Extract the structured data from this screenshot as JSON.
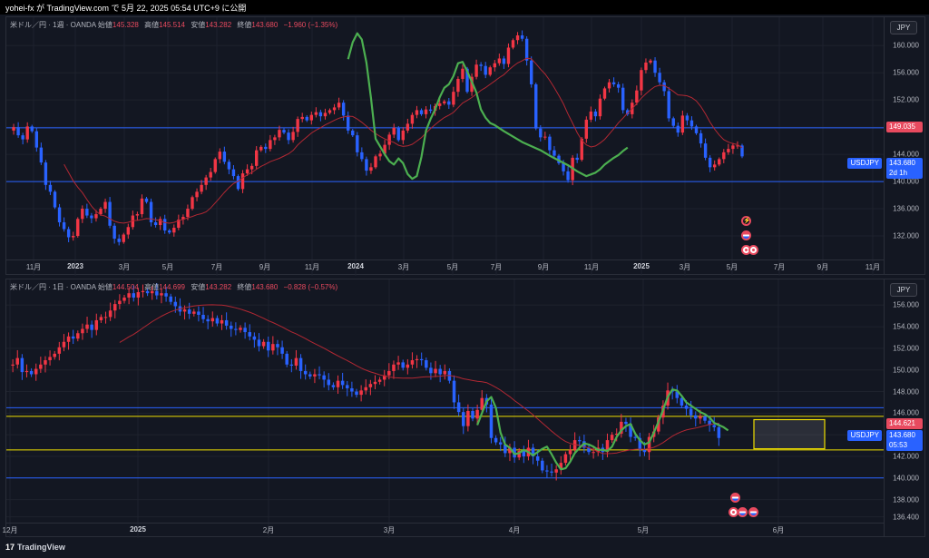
{
  "header": {
    "text": "yohei-fx が TradingView.com で 5月 22, 2025 05:54 UTC+9 に公開"
  },
  "footer": {
    "brand": "TradingView",
    "logo_glyph": "17"
  },
  "colors": {
    "up": "#f23645",
    "down": "#2962ff",
    "ma": "#b22833",
    "zigzag": "#4caf50",
    "hline_blue": "#2962ff",
    "hline_yellow": "#f0e000",
    "bg": "#131722"
  },
  "weekly": {
    "legend": {
      "symbol": "米ドル／円 · 1週 · OANDA",
      "o_label": "始値",
      "o": "145.328",
      "h_label": "高値",
      "h": "145.514",
      "l_label": "安値",
      "l": "143.282",
      "c_label": "終値",
      "c": "143.680",
      "chg": "−1.960 (−1.35%)"
    },
    "currency": "JPY",
    "y_ticks": [
      "160.000",
      "156.000",
      "152.000",
      "148.000",
      "144.000",
      "140.000",
      "136.000",
      "132.000"
    ],
    "y_range": [
      129.2,
      162.3
    ],
    "x_ticks": [
      {
        "label": "11月",
        "bold": false
      },
      {
        "label": "2023",
        "bold": true
      },
      {
        "label": "3月",
        "bold": false
      },
      {
        "label": "5月",
        "bold": false
      },
      {
        "label": "7月",
        "bold": false
      },
      {
        "label": "9月",
        "bold": false
      },
      {
        "label": "11月",
        "bold": false
      },
      {
        "label": "2024",
        "bold": true
      },
      {
        "label": "3月",
        "bold": false
      },
      {
        "label": "5月",
        "bold": false
      },
      {
        "label": "7月",
        "bold": false
      },
      {
        "label": "9月",
        "bold": false
      },
      {
        "label": "11月",
        "bold": false
      },
      {
        "label": "2025",
        "bold": true
      },
      {
        "label": "3月",
        "bold": false
      },
      {
        "label": "5月",
        "bold": false
      },
      {
        "label": "7月",
        "bold": false
      },
      {
        "label": "9月",
        "bold": false
      },
      {
        "label": "11月",
        "bold": false
      }
    ],
    "hlines": [
      147.9,
      140.0
    ],
    "ma_label": {
      "value": "149.035"
    },
    "price_label": {
      "symbol": "USDJPY",
      "value": "143.680",
      "timer": "2d 1h"
    },
    "chart_data": {
      "type": "candlestick",
      "closes": [
        147.5,
        148.0,
        146.8,
        146.2,
        148.1,
        147.4,
        145.0,
        142.8,
        139.5,
        138.5,
        136.2,
        134.0,
        133.0,
        131.8,
        132.0,
        134.5,
        136.0,
        135.0,
        134.6,
        135.2,
        136.0,
        137.0,
        133.5,
        131.6,
        131.1,
        132.2,
        133.3,
        135.0,
        135.2,
        137.5,
        137.0,
        134.0,
        133.6,
        134.5,
        132.8,
        132.5,
        133.2,
        134.4,
        134.8,
        136.0,
        137.7,
        138.5,
        139.5,
        140.6,
        141.4,
        143.3,
        144.4,
        142.9,
        141.8,
        140.8,
        138.9,
        141.2,
        141.8,
        142.3,
        144.6,
        145.1,
        144.8,
        146.1,
        146.5,
        147.6,
        147.2,
        146.1,
        147.3,
        149.2,
        149.5,
        149.0,
        149.8,
        150.2,
        149.6,
        150.1,
        150.5,
        150.9,
        151.6,
        149.7,
        147.5,
        146.8,
        144.3,
        143.3,
        141.6,
        142.1,
        143.7,
        144.1,
        145.4,
        146.9,
        147.9,
        146.1,
        147.5,
        148.5,
        149.8,
        150.5,
        149.9,
        150.6,
        150.4,
        151.1,
        151.5,
        151.8,
        151.3,
        153.2,
        155.1,
        156.6,
        153.2,
        155.4,
        157.2,
        157.0,
        155.7,
        156.8,
        157.4,
        158.1,
        157.3,
        159.7,
        160.8,
        161.5,
        161.0,
        157.8,
        154.3,
        147.8,
        146.5,
        146.6,
        144.6,
        143.8,
        142.7,
        141.5,
        140.2,
        143.5,
        143.2,
        146.3,
        149.1,
        150.3,
        149.6,
        152.2,
        153.7,
        154.6,
        154.3,
        153.8,
        150.5,
        149.9,
        151.6,
        153.4,
        156.4,
        157.5,
        157.8,
        156.0,
        154.6,
        153.3,
        149.3,
        148.2,
        147.2,
        149.7,
        149.0,
        148.1,
        147.1,
        145.6,
        143.5,
        142.1,
        142.5,
        143.3,
        144.3,
        144.8,
        145.3,
        145.3,
        143.7
      ],
      "ma_period": 13,
      "zigzag_x": [
        74,
        75,
        76,
        77,
        78,
        79,
        80,
        82,
        83,
        84,
        85,
        86,
        87,
        88,
        89,
        90,
        91,
        92,
        93,
        94,
        95,
        96,
        97,
        98,
        99,
        100,
        101,
        102,
        103,
        104,
        105,
        106,
        108,
        110,
        112,
        114,
        116,
        118,
        120,
        122,
        124,
        126,
        128,
        129,
        130,
        131,
        132,
        133,
        134,
        135
      ],
      "zigzag_y": [
        158.0,
        160.5,
        161.8,
        160.9,
        157.5,
        152.3,
        146.3,
        144.0,
        143.0,
        142.5,
        143.4,
        142.7,
        141.1,
        140.4,
        140.8,
        143.6,
        147.5,
        149.2,
        150.6,
        152.4,
        153.8,
        154.3,
        155.5,
        157.4,
        157.6,
        156.2,
        154.7,
        153.1,
        150.6,
        149.4,
        148.6,
        148.3,
        147.4,
        146.6,
        145.8,
        145.2,
        144.6,
        143.8,
        143.1,
        142.4,
        141.5,
        140.8,
        141.3,
        141.8,
        142.5,
        143.0,
        143.5,
        143.9,
        144.5,
        145.0
      ],
      "zigzag_from": 83
    }
  },
  "daily": {
    "legend": {
      "symbol": "米ドル／円 · 1日 · OANDA",
      "o_label": "始値",
      "o": "144.504",
      "h_label": "高値",
      "h": "144.699",
      "l_label": "安値",
      "l": "143.282",
      "c_label": "終値",
      "c": "143.680",
      "chg": "−0.828 (−0.57%)"
    },
    "currency": "JPY",
    "y_ticks": [
      "156.000",
      "154.000",
      "152.000",
      "150.000",
      "148.000",
      "146.000",
      "144.000",
      "142.000",
      "140.000",
      "138.000",
      "136.400"
    ],
    "y_range": [
      135.7,
      157.2
    ],
    "x_ticks": [
      {
        "label": "12月",
        "bold": false
      },
      {
        "label": "2025",
        "bold": true
      },
      {
        "label": "2月",
        "bold": false
      },
      {
        "label": "3月",
        "bold": false
      },
      {
        "label": "4月",
        "bold": false
      },
      {
        "label": "5月",
        "bold": false
      },
      {
        "label": "6月",
        "bold": false
      }
    ],
    "hlines_blue": [
      146.5,
      140.0
    ],
    "hlines_yellow": [
      145.7,
      142.6
    ],
    "box": {
      "y_top": 145.4,
      "y_bottom": 142.7
    },
    "ma_label": {
      "value": "144.621"
    },
    "price_label": {
      "symbol": "USDJPY",
      "value": "143.680",
      "timer": "05:53"
    },
    "chart_data": {
      "type": "candlestick",
      "closes": [
        150.4,
        150.5,
        151.1,
        149.8,
        149.9,
        149.6,
        150.1,
        150.5,
        150.9,
        151.2,
        151.5,
        152.1,
        152.6,
        153.1,
        152.9,
        153.4,
        153.8,
        154.2,
        153.7,
        154.6,
        154.9,
        154.9,
        155.5,
        156.1,
        156.4,
        156.7,
        157.1,
        156.7,
        157.2,
        157.3,
        157.1,
        157.3,
        156.9,
        157.1,
        156.8,
        156.3,
        155.9,
        155.4,
        155.6,
        155.2,
        155.4,
        155.1,
        154.7,
        154.5,
        154.8,
        154.3,
        154.6,
        154.1,
        153.8,
        153.7,
        153.9,
        153.5,
        153.1,
        152.8,
        152.2,
        152.6,
        151.8,
        152.4,
        152.1,
        151.5,
        150.5,
        150.4,
        151.1,
        149.9,
        149.6,
        149.4,
        149.6,
        149.5,
        149.1,
        148.6,
        148.4,
        149.0,
        148.6,
        148.3,
        148.0,
        147.7,
        148.1,
        148.4,
        148.7,
        148.9,
        149.1,
        149.5,
        149.9,
        150.5,
        150.7,
        150.2,
        150.5,
        150.9,
        151.0,
        150.9,
        150.2,
        149.7,
        150.1,
        149.6,
        149.9,
        149.0,
        147.0,
        146.1,
        144.8,
        146.2,
        145.5,
        146.3,
        147.4,
        146.8,
        143.7,
        143.3,
        143.1,
        142.3,
        142.8,
        141.9,
        142.5,
        142.0,
        142.8,
        142.0,
        141.6,
        140.7,
        140.6,
        140.5,
        140.8,
        141.4,
        142.2,
        142.6,
        143.5,
        143.4,
        142.8,
        142.4,
        142.4,
        142.8,
        142.4,
        143.5,
        144.0,
        144.1,
        145.2,
        145.0,
        143.8,
        143.7,
        142.6,
        142.4,
        143.8,
        144.3,
        145.6,
        146.7,
        148.1,
        148.0,
        147.4,
        146.7,
        146.4,
        145.8,
        145.5,
        145.7,
        145.3,
        144.9,
        144.7,
        143.7
      ],
      "ma_period": 25,
      "zigzag_x": [
        101,
        102,
        103,
        104,
        105,
        106,
        107,
        108,
        109,
        110,
        111,
        112,
        113,
        114,
        115,
        116,
        117,
        118,
        119,
        120,
        121,
        122,
        123,
        124,
        125,
        126,
        127,
        128,
        129,
        130,
        131,
        132,
        133,
        134,
        135,
        136,
        137,
        138,
        139,
        140,
        141,
        142,
        143,
        144,
        145,
        146,
        147,
        148,
        149,
        150,
        151,
        152,
        153,
        154,
        155
      ],
      "zigzag_y": [
        144.9,
        146.0,
        147.1,
        147.5,
        146.5,
        144.2,
        143.1,
        142.8,
        142.2,
        142.3,
        142.6,
        142.4,
        142.1,
        142.4,
        142.7,
        142.9,
        142.2,
        141.4,
        140.8,
        140.9,
        141.5,
        142.3,
        142.8,
        143.2,
        143.1,
        142.9,
        142.6,
        142.6,
        142.5,
        142.9,
        143.8,
        144.4,
        144.8,
        145.0,
        144.1,
        143.5,
        143.1,
        143.3,
        144.2,
        145.2,
        146.3,
        147.5,
        148.2,
        148.1,
        147.6,
        147.0,
        146.7,
        146.4,
        146.1,
        145.9,
        145.6,
        145.1,
        144.9,
        144.7,
        144.4
      ],
      "zigzag_from": 96
    }
  }
}
